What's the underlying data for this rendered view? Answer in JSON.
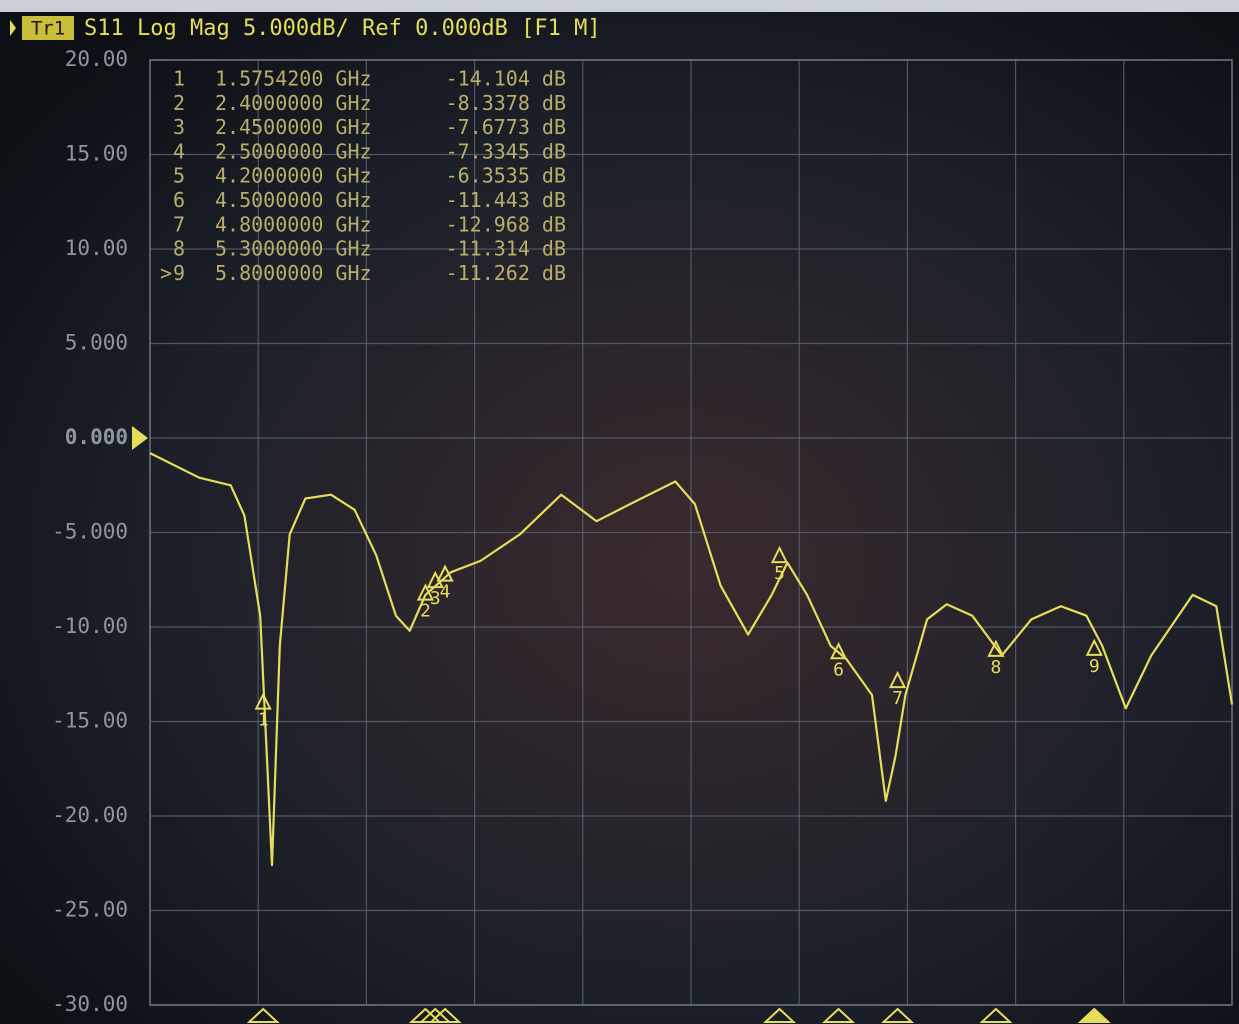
{
  "chart_data": {
    "type": "line",
    "trace_label": "Tr1",
    "title": "S11 Log Mag 5.000dB/ Ref 0.000dB [F1 M]",
    "xlim": [
      1,
      6.5
    ],
    "ylim": [
      -30,
      20
    ],
    "yticks": [
      {
        "value": 20,
        "label": "20.00"
      },
      {
        "value": 15,
        "label": "15.00"
      },
      {
        "value": 10,
        "label": "10.00"
      },
      {
        "value": 5,
        "label": "5.000"
      },
      {
        "value": 0,
        "label": "0.000"
      },
      {
        "value": -5,
        "label": "-5.000"
      },
      {
        "value": -10,
        "label": "-10.00"
      },
      {
        "value": -15,
        "label": "-15.00"
      },
      {
        "value": -20,
        "label": "-20.00"
      },
      {
        "value": -25,
        "label": "-25.00"
      },
      {
        "value": -30,
        "label": "-30.00"
      }
    ],
    "reference": 0,
    "grid": true,
    "series": [
      {
        "name": "S11",
        "color": "#e6dd5a",
        "x": [
          1.0,
          1.25,
          1.41,
          1.48,
          1.56,
          1.62,
          1.66,
          1.71,
          1.79,
          1.92,
          2.04,
          2.15,
          2.25,
          2.32,
          2.4,
          2.53,
          2.68,
          2.88,
          3.09,
          3.27,
          3.44,
          3.67,
          3.77,
          3.9,
          4.04,
          4.16,
          4.24,
          4.34,
          4.46,
          4.54,
          4.67,
          4.74,
          4.79,
          4.84,
          4.95,
          5.05,
          5.18,
          5.33,
          5.48,
          5.63,
          5.76,
          5.84,
          5.96,
          6.09,
          6.3,
          6.42,
          6.5
        ],
        "values": [
          -0.8,
          -2.1,
          -2.5,
          -4.1,
          -9.4,
          -22.6,
          -11,
          -5.1,
          -3.2,
          -3.0,
          -3.8,
          -6.2,
          -9.4,
          -10.2,
          -8.3,
          -7.1,
          -6.5,
          -5.1,
          -3.0,
          -4.4,
          -3.5,
          -2.3,
          -3.5,
          -7.8,
          -10.4,
          -8.3,
          -6.6,
          -8.3,
          -11,
          -11.7,
          -13.6,
          -19.2,
          -16.8,
          -13.6,
          -9.6,
          -8.8,
          -9.4,
          -11.5,
          -9.6,
          -8.9,
          -9.4,
          -11,
          -14.3,
          -11.5,
          -8.3,
          -8.9,
          -14.1
        ]
      }
    ],
    "markers": {
      "names": [
        "1",
        "2",
        "3",
        "4",
        "5",
        "6",
        "7",
        "8",
        "9"
      ],
      "active_indicator": ">",
      "x": [
        1.57542,
        2.4,
        2.45,
        2.5,
        4.2,
        4.5,
        4.8,
        5.3,
        5.8
      ],
      "x_labels": [
        "1.5754200 GHz",
        "2.4000000 GHz",
        "2.4500000 GHz",
        "2.5000000 GHz",
        "4.2000000 GHz",
        "4.5000000 GHz",
        "4.8000000 GHz",
        "5.3000000 GHz",
        "5.8000000 GHz"
      ],
      "values": [
        -14.104,
        -8.3378,
        -7.6773,
        -7.3345,
        -6.3535,
        -11.443,
        -12.968,
        -11.314,
        -11.262
      ],
      "value_labels": [
        "-14.104 dB",
        "-8.3378 dB",
        "-7.6773 dB",
        "-7.3345 dB",
        "-6.3535 dB",
        "-11.443 dB",
        "-12.968 dB",
        "-11.314 dB",
        "-11.262 dB"
      ]
    }
  }
}
